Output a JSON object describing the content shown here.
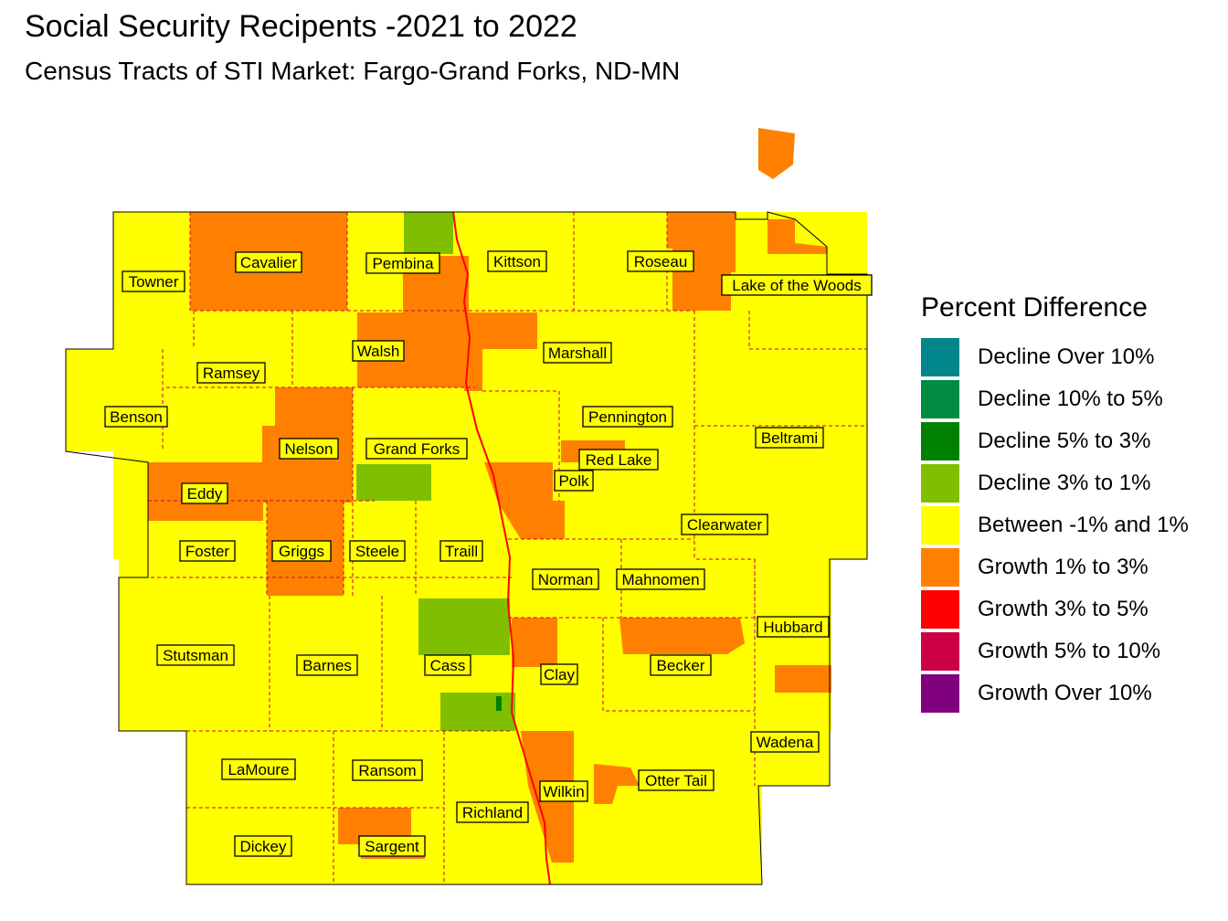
{
  "title": "Social Security Recipents -2021 to 2022",
  "subtitle": "Census Tracts of STI Market: Fargo-Grand Forks, ND-MN",
  "legend": {
    "title": "Percent Difference",
    "items": [
      {
        "label": "Decline Over 10%",
        "color": "#00868b"
      },
      {
        "label": "Decline 10% to 5%",
        "color": "#008b45"
      },
      {
        "label": "Decline 5% to 3%",
        "color": "#008000"
      },
      {
        "label": "Decline 3% to 1%",
        "color": "#7fbf00"
      },
      {
        "label": "Between -1% and 1%",
        "color": "#ffff00"
      },
      {
        "label": "Growth 1% to 3%",
        "color": "#ff8000"
      },
      {
        "label": "Growth 3% to 5%",
        "color": "#ff0000"
      },
      {
        "label": "Growth 5% to 10%",
        "color": "#cc0044"
      },
      {
        "label": "Growth Over 10%",
        "color": "#800080"
      }
    ]
  },
  "counties": [
    "Towner",
    "Cavalier",
    "Pembina",
    "Kittson",
    "Roseau",
    "Lake of the Woods",
    "Ramsey",
    "Walsh",
    "Marshall",
    "Benson",
    "Pennington",
    "Beltrami",
    "Nelson",
    "Grand Forks",
    "Red Lake",
    "Polk",
    "Eddy",
    "Clearwater",
    "Foster",
    "Griggs",
    "Steele",
    "Traill",
    "Norman",
    "Mahnomen",
    "Hubbard",
    "Stutsman",
    "Barnes",
    "Cass",
    "Clay",
    "Becker",
    "Wadena",
    "LaMoure",
    "Ransom",
    "Richland",
    "Wilkin",
    "Otter Tail",
    "Dickey",
    "Sargent"
  ]
}
